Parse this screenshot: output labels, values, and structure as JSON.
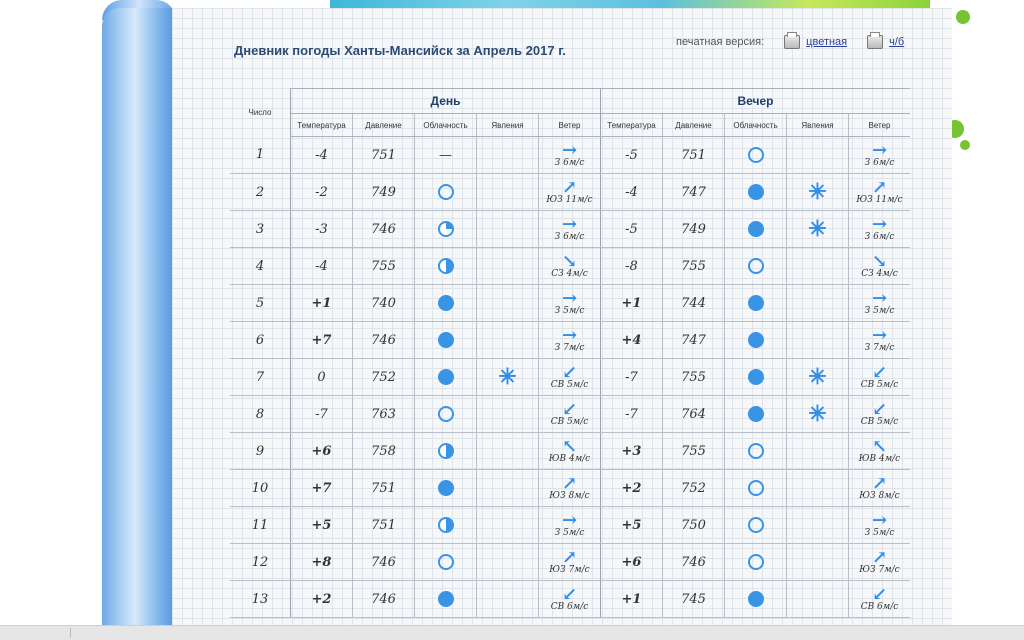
{
  "title": "Дневник погоды Ханты-Мансийск за Апрель 2017 г.",
  "print": {
    "label": "печатная версия:",
    "color_link": "цветная",
    "bw_link": "ч/б"
  },
  "headers": {
    "chislo": "Число",
    "day": "День",
    "evening": "Вечер",
    "sub": [
      "Температура",
      "Давление",
      "Облачность",
      "Явления",
      "Ветер"
    ]
  },
  "rows": [
    {
      "n": "1",
      "d": {
        "t": "-4",
        "p": "751",
        "c": "none",
        "ph": "",
        "wa": "→",
        "wt": "З 6м/с"
      },
      "e": {
        "t": "-5",
        "p": "751",
        "c": "empty",
        "ph": "",
        "wa": "→",
        "wt": "З 6м/с"
      }
    },
    {
      "n": "2",
      "d": {
        "t": "-2",
        "p": "749",
        "c": "empty",
        "ph": "",
        "wa": "↗",
        "wt": "ЮЗ 11м/с"
      },
      "e": {
        "t": "-4",
        "p": "747",
        "c": "full",
        "ph": "snow",
        "wa": "↗",
        "wt": "ЮЗ 11м/с"
      }
    },
    {
      "n": "3",
      "d": {
        "t": "-3",
        "p": "746",
        "c": "q",
        "ph": "",
        "wa": "→",
        "wt": "З 6м/с"
      },
      "e": {
        "t": "-5",
        "p": "749",
        "c": "full",
        "ph": "snow",
        "wa": "→",
        "wt": "З 6м/с"
      }
    },
    {
      "n": "4",
      "d": {
        "t": "-4",
        "p": "755",
        "c": "half",
        "ph": "",
        "wa": "↘",
        "wt": "СЗ 4м/с"
      },
      "e": {
        "t": "-8",
        "p": "755",
        "c": "empty",
        "ph": "",
        "wa": "↘",
        "wt": "СЗ 4м/с"
      }
    },
    {
      "n": "5",
      "d": {
        "t": "+1",
        "p": "740",
        "c": "full",
        "ph": "",
        "wa": "→",
        "wt": "З 5м/с"
      },
      "e": {
        "t": "+1",
        "p": "744",
        "c": "full",
        "ph": "",
        "wa": "→",
        "wt": "З 5м/с"
      }
    },
    {
      "n": "6",
      "d": {
        "t": "+7",
        "p": "746",
        "c": "full",
        "ph": "",
        "wa": "→",
        "wt": "З 7м/с"
      },
      "e": {
        "t": "+4",
        "p": "747",
        "c": "full",
        "ph": "",
        "wa": "→",
        "wt": "З 7м/с"
      }
    },
    {
      "n": "7",
      "d": {
        "t": "0",
        "p": "752",
        "c": "full",
        "ph": "snow",
        "wa": "↙",
        "wt": "СВ 5м/с"
      },
      "e": {
        "t": "-7",
        "p": "755",
        "c": "full",
        "ph": "snow",
        "wa": "↙",
        "wt": "СВ 5м/с"
      }
    },
    {
      "n": "8",
      "d": {
        "t": "-7",
        "p": "763",
        "c": "empty",
        "ph": "",
        "wa": "↙",
        "wt": "СВ 5м/с"
      },
      "e": {
        "t": "-7",
        "p": "764",
        "c": "full",
        "ph": "snow",
        "wa": "↙",
        "wt": "СВ 5м/с"
      }
    },
    {
      "n": "9",
      "d": {
        "t": "+6",
        "p": "758",
        "c": "half",
        "ph": "",
        "wa": "↖",
        "wt": "ЮВ 4м/с"
      },
      "e": {
        "t": "+3",
        "p": "755",
        "c": "empty",
        "ph": "",
        "wa": "↖",
        "wt": "ЮВ 4м/с"
      }
    },
    {
      "n": "10",
      "d": {
        "t": "+7",
        "p": "751",
        "c": "full",
        "ph": "",
        "wa": "↗",
        "wt": "ЮЗ 8м/с"
      },
      "e": {
        "t": "+2",
        "p": "752",
        "c": "empty",
        "ph": "",
        "wa": "↗",
        "wt": "ЮЗ 8м/с"
      }
    },
    {
      "n": "11",
      "d": {
        "t": "+5",
        "p": "751",
        "c": "half",
        "ph": "",
        "wa": "→",
        "wt": "З 5м/с"
      },
      "e": {
        "t": "+5",
        "p": "750",
        "c": "empty",
        "ph": "",
        "wa": "→",
        "wt": "З 5м/с"
      }
    },
    {
      "n": "12",
      "d": {
        "t": "+8",
        "p": "746",
        "c": "empty",
        "ph": "",
        "wa": "↗",
        "wt": "ЮЗ 7м/с"
      },
      "e": {
        "t": "+6",
        "p": "746",
        "c": "empty",
        "ph": "",
        "wa": "↗",
        "wt": "ЮЗ 7м/с"
      }
    },
    {
      "n": "13",
      "d": {
        "t": "+2",
        "p": "746",
        "c": "full",
        "ph": "",
        "wa": "↙",
        "wt": "СВ 6м/с"
      },
      "e": {
        "t": "+1",
        "p": "745",
        "c": "full",
        "ph": "",
        "wa": "↙",
        "wt": "СВ 6м/с"
      }
    }
  ],
  "colors": {
    "accent": "#3a94e5",
    "positive_temp": "#d81e1e",
    "title": "#2d4b73"
  }
}
